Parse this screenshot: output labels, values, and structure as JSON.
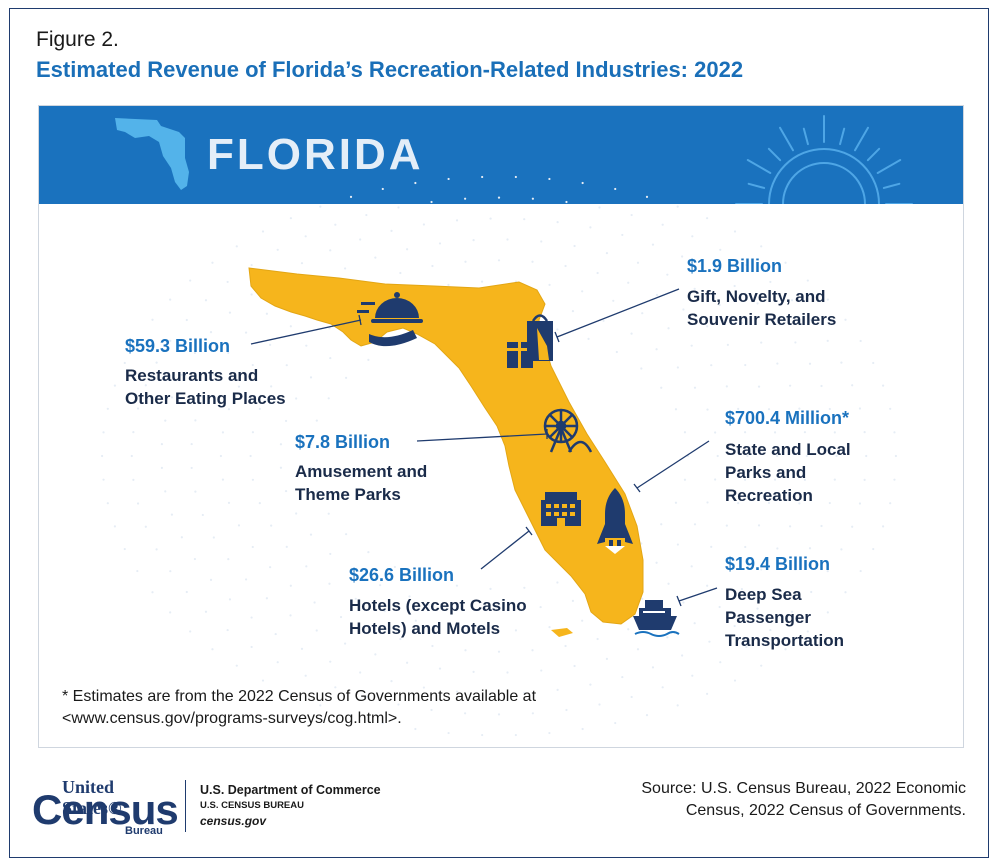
{
  "figure": {
    "label": "Figure 2.",
    "title": "Estimated Revenue of Florida’s Recreation-Related Industries: 2022"
  },
  "banner": {
    "state": "FLORIDA"
  },
  "colors": {
    "accent": "#1a72be",
    "map_fill": "#f6b51c",
    "icons": "#1f3b6e",
    "navy": "#1a2b49"
  },
  "industries": [
    {
      "amount": "$59.3 Billion",
      "category_lines": [
        "Restaurants and",
        "Other Eating Places"
      ],
      "icon": "restaurant-cloche-icon"
    },
    {
      "amount": "$1.9 Billion",
      "category_lines": [
        "Gift, Novelty, and",
        "Souvenir Retailers"
      ],
      "icon": "shopping-bags-gift-icon"
    },
    {
      "amount": "$7.8 Billion",
      "category_lines": [
        "Amusement and",
        "Theme Parks"
      ],
      "icon": "ferris-wheel-icon"
    },
    {
      "amount": "$700.4 Million*",
      "category_lines": [
        "State and Local",
        "Parks and",
        "Recreation"
      ],
      "icon": "space-shuttle-icon"
    },
    {
      "amount": "$26.6 Billion",
      "category_lines": [
        "Hotels (except Casino",
        "Hotels) and Motels"
      ],
      "icon": "hotel-icon"
    },
    {
      "amount": "$19.4 Billion",
      "category_lines": [
        "Deep Sea",
        "Passenger",
        "Transportation"
      ],
      "icon": "cruise-ship-icon"
    }
  ],
  "note": {
    "line1": "* Estimates are from the 2022 Census of Governments available at",
    "line2": "<www.census.gov/programs-surveys/cog.html>."
  },
  "footer": {
    "logo_line1": "United States®",
    "logo_line2": "Census",
    "logo_line3": "Bureau",
    "dept_line1": "U.S. Department of Commerce",
    "dept_line2": "U.S. CENSUS BUREAU",
    "dept_line3": "census.gov",
    "source_line1": "Source: U.S. Census Bureau, 2022 Economic",
    "source_line2": "Census, 2022 Census of Governments."
  }
}
